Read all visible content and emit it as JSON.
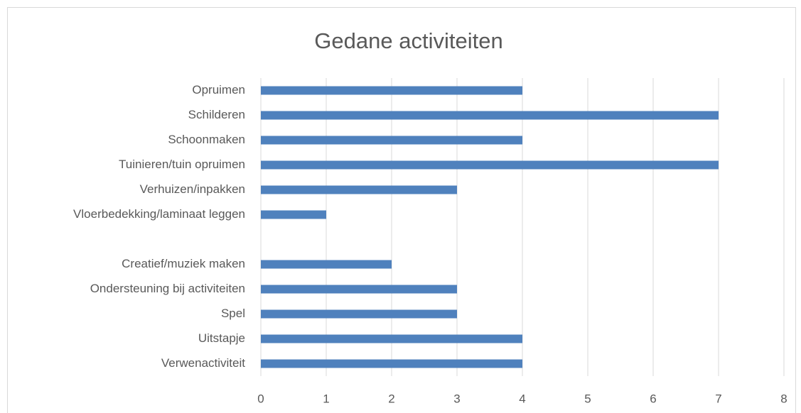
{
  "chart_data": {
    "type": "bar",
    "orientation": "horizontal",
    "title": "Gedane activiteiten",
    "categories": [
      "Opruimen",
      "Schilderen",
      "Schoonmaken",
      "Tuinieren/tuin opruimen",
      "Verhuizen/inpakken",
      "Vloerbedekking/laminaat leggen",
      null,
      "Creatief/muziek maken",
      "Ondersteuning bij activiteiten",
      "Spel",
      "Uitstapje",
      "Verwenactiviteit"
    ],
    "values": [
      4,
      7,
      4,
      7,
      3,
      1,
      null,
      2,
      3,
      3,
      4,
      4
    ],
    "color": "#4f81bd",
    "xlim": [
      0,
      8
    ],
    "xticks": [
      0,
      1,
      2,
      3,
      4,
      5,
      6,
      7,
      8
    ],
    "grid": true
  }
}
